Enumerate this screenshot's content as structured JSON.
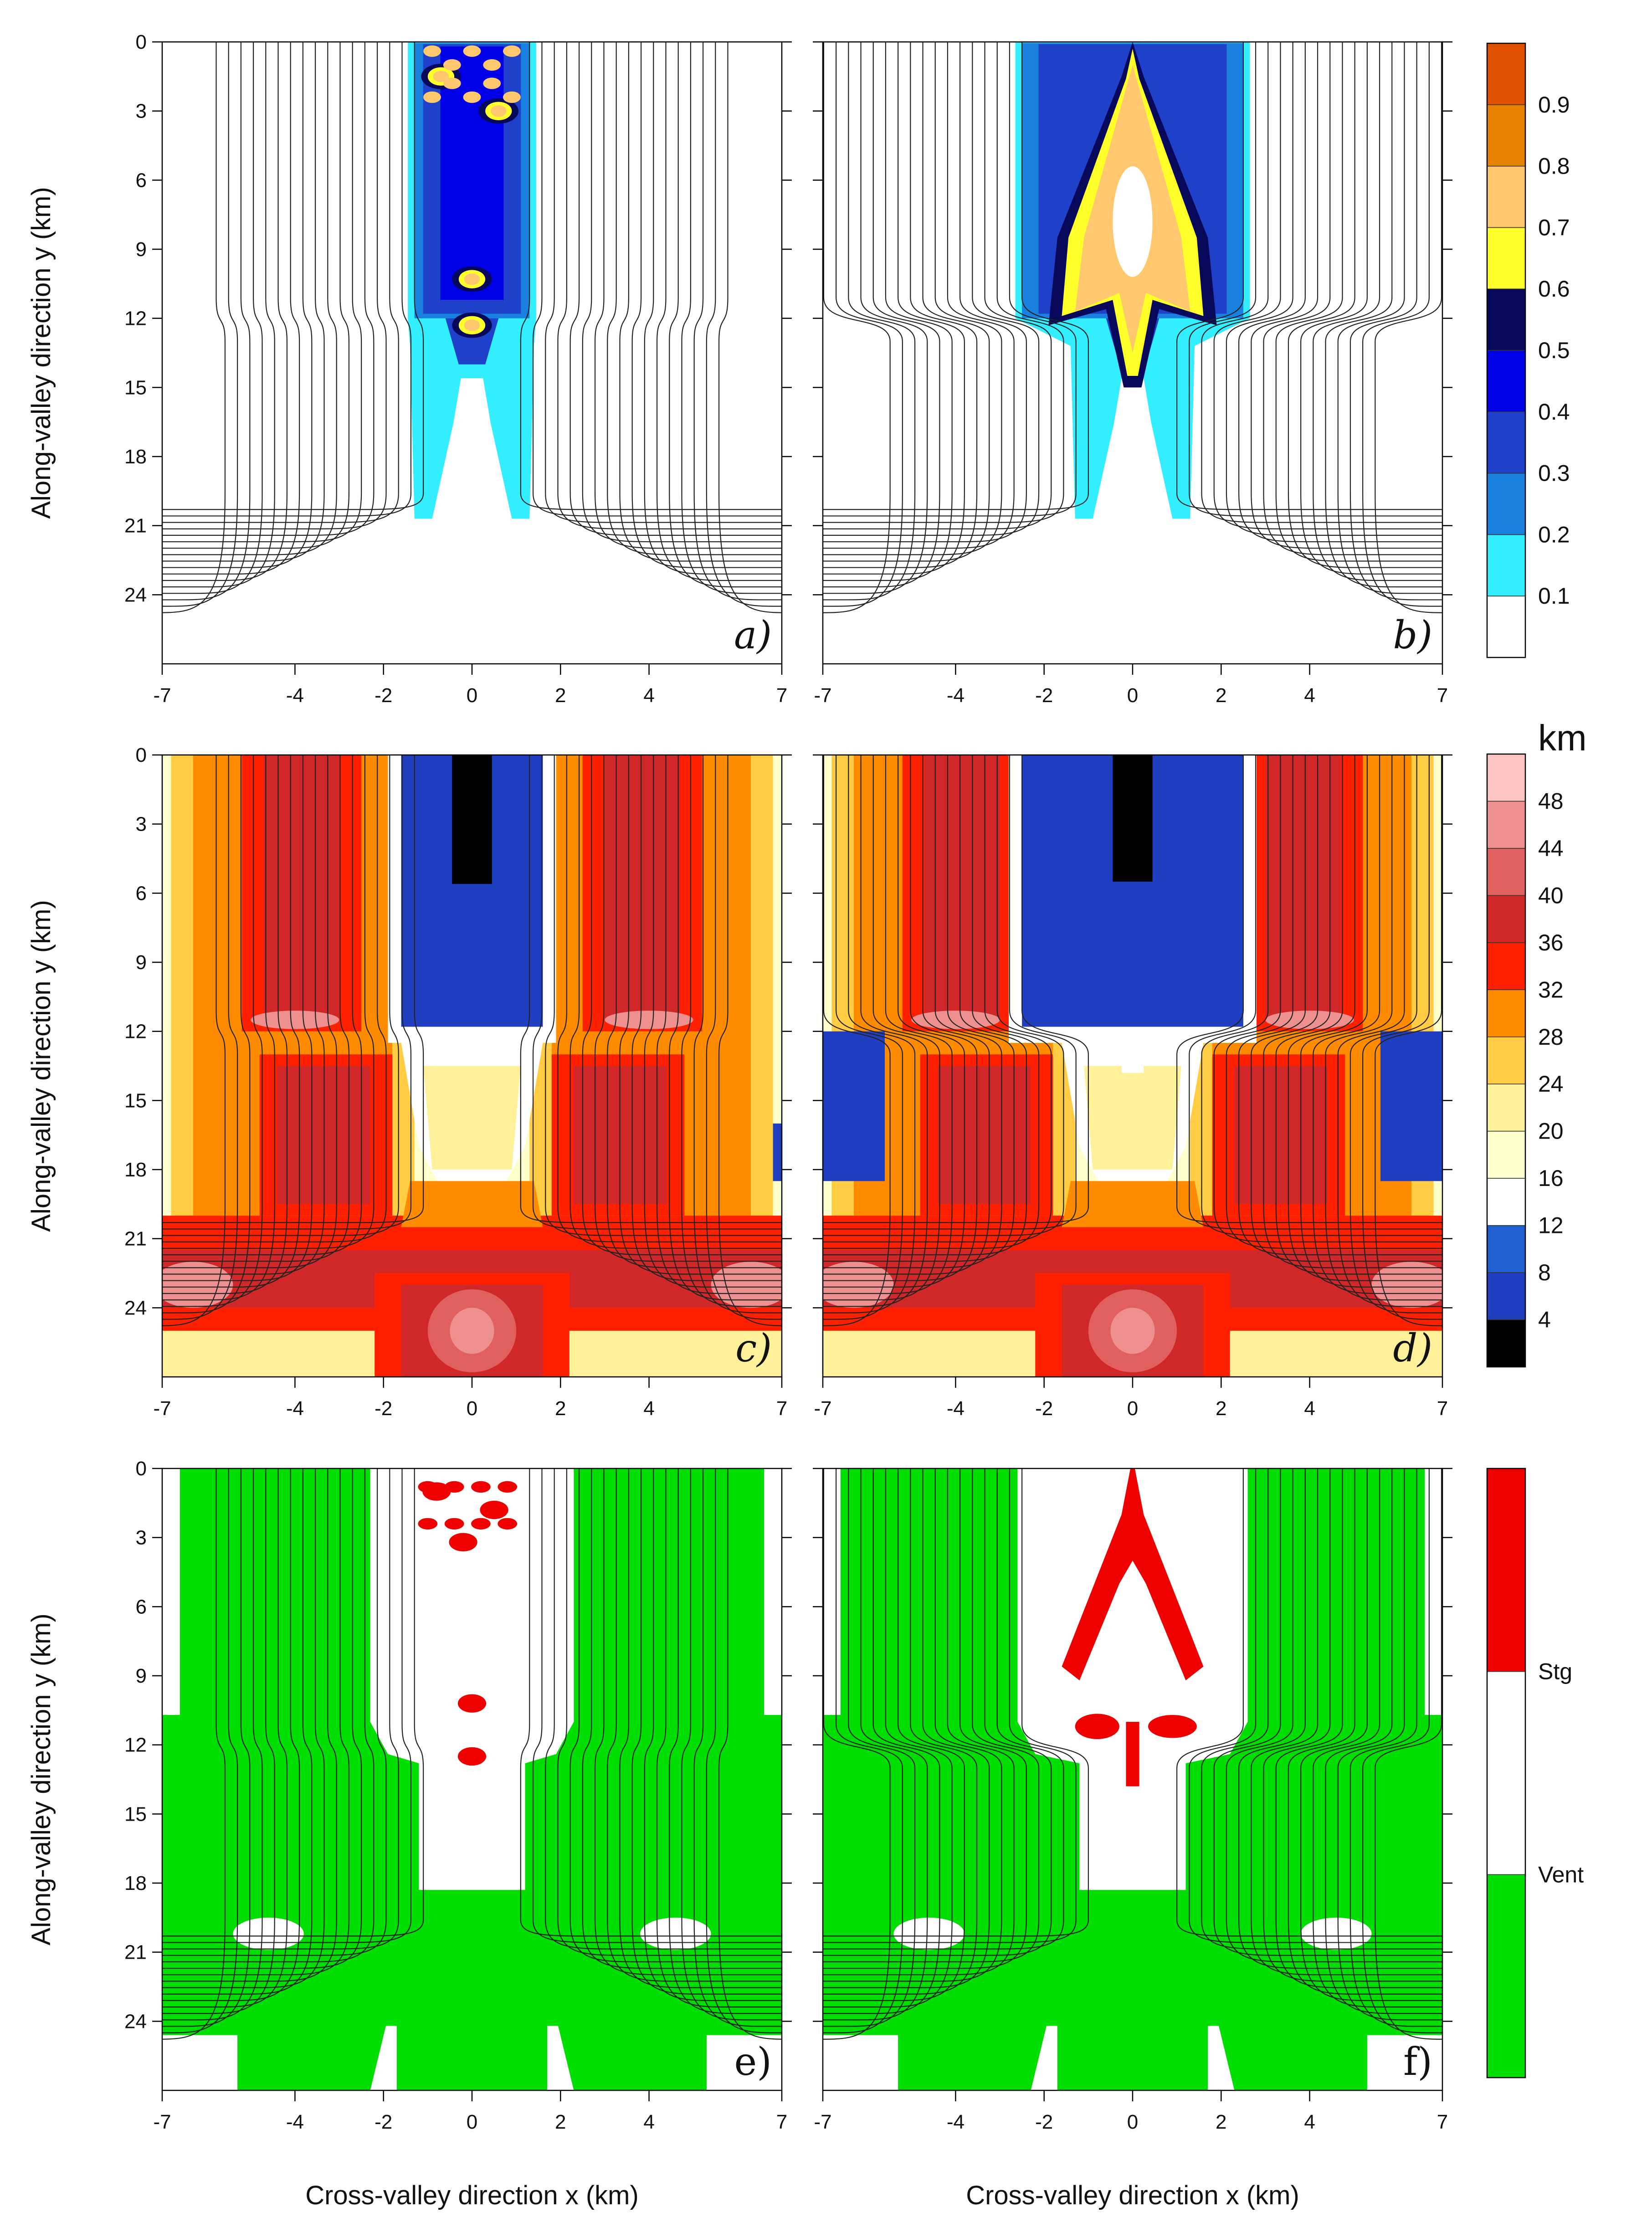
{
  "figure": {
    "axis_label_y": "Along-valley direction y (km)",
    "axis_label_x": "Cross-valley direction x (km)",
    "x_ticks": [
      -7,
      -4,
      -2,
      0,
      2,
      4,
      7
    ],
    "y_ticks": [
      0,
      3,
      6,
      9,
      12,
      15,
      18,
      21,
      24
    ]
  },
  "chart_data": [
    {
      "type": "heatmap",
      "panel": "a)",
      "row": 0,
      "col": 0,
      "field": "fraction",
      "xlim": [
        -7,
        7
      ],
      "ylim": [
        0,
        27
      ],
      "y_inverted": true,
      "core": {
        "halfwidth_upper": 1.3,
        "halfwidth_lower": 0.9,
        "upper_end": 12,
        "lower_end": 20.5
      },
      "blobs": [
        {
          "x": 0,
          "y": 10.3,
          "value": 0.7
        },
        {
          "x": 0,
          "y": 12.3,
          "value": 0.7
        },
        {
          "x": -0.7,
          "y": 1.5,
          "value": 0.75
        },
        {
          "x": 0.6,
          "y": 3.0,
          "value": 0.75
        }
      ]
    },
    {
      "type": "heatmap",
      "panel": "b)",
      "row": 0,
      "col": 1,
      "field": "fraction",
      "xlim": [
        -7,
        7
      ],
      "ylim": [
        0,
        27
      ],
      "y_inverted": true,
      "core": {
        "halfwidth_upper": 2.5,
        "halfwidth_lower": 0.9,
        "upper_end": 12,
        "lower_end": 20.5
      },
      "plume": {
        "apex_y": 0,
        "base_y": 12,
        "base_halfwidth": 1.5,
        "tail_end_y": 14.5
      }
    },
    {
      "type": "heatmap",
      "panel": "c)",
      "row": 1,
      "col": 0,
      "field": "length_km",
      "xlim": [
        -7,
        7
      ],
      "ylim": [
        0,
        27
      ],
      "y_inverted": true,
      "core": {
        "halfwidth_upper": 1.6,
        "upper_end": 12.5
      },
      "bands": [
        {
          "x_center": 3.4,
          "y_end": 12,
          "value": 36
        },
        {
          "x_center": 3.0,
          "y_start": 13,
          "y_end": 20,
          "value": 36
        },
        {
          "x_center": 0,
          "y": 25,
          "value": 40
        },
        {
          "x_center": 6.5,
          "y": 23,
          "value": 44
        }
      ]
    },
    {
      "type": "heatmap",
      "panel": "d)",
      "row": 1,
      "col": 1,
      "field": "length_km",
      "xlim": [
        -7,
        7
      ],
      "ylim": [
        0,
        27
      ],
      "y_inverted": true,
      "core": {
        "halfwidth_upper": 2.5,
        "upper_end": 12
      },
      "side_pools": [
        {
          "x_range": [
            -7,
            -5.5
          ],
          "y_range": [
            12,
            18.5
          ],
          "value": 8
        },
        {
          "x_range": [
            5.5,
            7
          ],
          "y_range": [
            12,
            18.5
          ],
          "value": 8
        }
      ]
    },
    {
      "type": "heatmap",
      "panel": "e)",
      "row": 2,
      "col": 0,
      "field": "category",
      "xlim": [
        -7,
        7
      ],
      "ylim": [
        0,
        27
      ],
      "y_inverted": true,
      "stagnant_cells": [
        {
          "x": -0.8,
          "y": 1.0
        },
        {
          "x": 0.5,
          "y": 1.8
        },
        {
          "x": -0.2,
          "y": 3.2
        },
        {
          "x": 0,
          "y": 10.2
        },
        {
          "x": 0,
          "y": 12.5
        }
      ]
    },
    {
      "type": "heatmap",
      "panel": "f)",
      "row": 2,
      "col": 1,
      "field": "category",
      "xlim": [
        -7,
        7
      ],
      "ylim": [
        0,
        27
      ],
      "y_inverted": true,
      "plume": {
        "apex_y": 0,
        "base_y": 9,
        "base_halfwidth": 1.6,
        "tail_end_y": 14.5
      }
    }
  ],
  "colorbars": [
    {
      "id": "fraction",
      "title": "",
      "levels": [
        "0.1",
        "0.2",
        "0.3",
        "0.4",
        "0.5",
        "0.6",
        "0.7",
        "0.8",
        "0.9"
      ],
      "colors": [
        "#ffffff",
        "#33eeff",
        "#1a80e0",
        "#1f40c8",
        "#0000e6",
        "#08085a",
        "#ffff2a",
        "#ffc86e",
        "#e68200",
        "#e05000"
      ]
    },
    {
      "id": "length_km",
      "title": "km",
      "levels": [
        "4",
        "8",
        "12",
        "16",
        "20",
        "24",
        "28",
        "32",
        "36",
        "40",
        "44",
        "48"
      ],
      "colors": [
        "#000000",
        "#1f3fc0",
        "#1f5fd0",
        "#ffffff",
        "#ffffcc",
        "#fff09a",
        "#ffcc44",
        "#ff8c00",
        "#ff2000",
        "#d02828",
        "#e06060",
        "#ee9090",
        "#ffc4c4"
      ]
    },
    {
      "id": "category",
      "title": "",
      "levels": [
        "Vent",
        "Stg"
      ],
      "colors": [
        "#00dd00",
        "#ffffff",
        "#ee0000"
      ]
    }
  ]
}
